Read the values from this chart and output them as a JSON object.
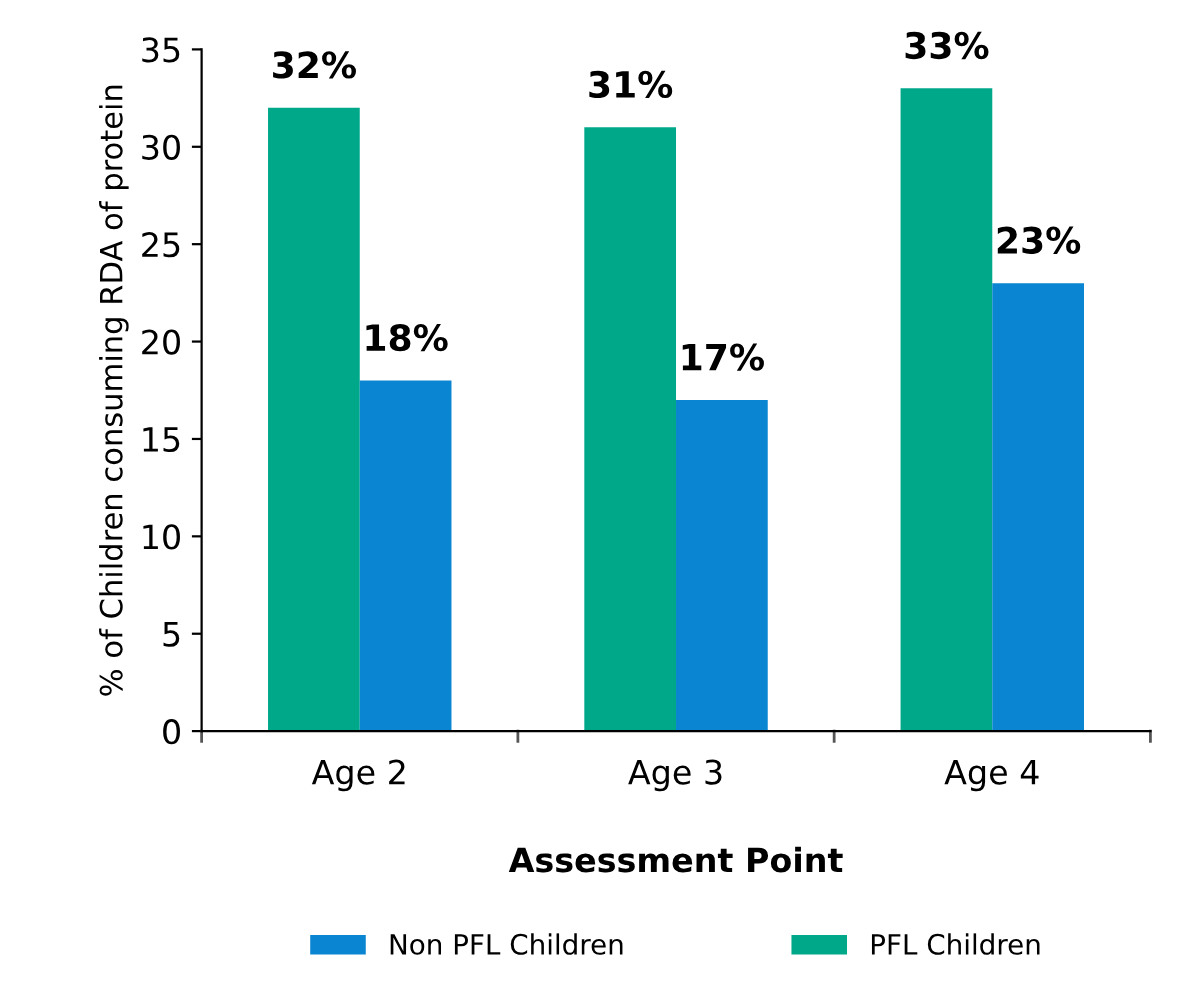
{
  "chart_data": {
    "type": "bar",
    "xlabel": "Assessment Point",
    "ylabel": "% of Children consuming RDA of protein",
    "categories": [
      "Age 2",
      "Age 3",
      "Age 4"
    ],
    "series": [
      {
        "name": "PFL Children",
        "color": "#00a88a",
        "values": [
          32,
          31,
          33
        ],
        "value_labels": [
          "32%",
          "31%",
          "33%"
        ]
      },
      {
        "name": "Non PFL Children",
        "color": "#0a85d1",
        "values": [
          18,
          17,
          23
        ],
        "value_labels": [
          "18%",
          "17%",
          "23%"
        ]
      }
    ],
    "ylim": [
      0,
      35
    ],
    "yticks": [
      0,
      5,
      10,
      15,
      20,
      25,
      30,
      35
    ],
    "grid": false,
    "legend": "bottom"
  }
}
